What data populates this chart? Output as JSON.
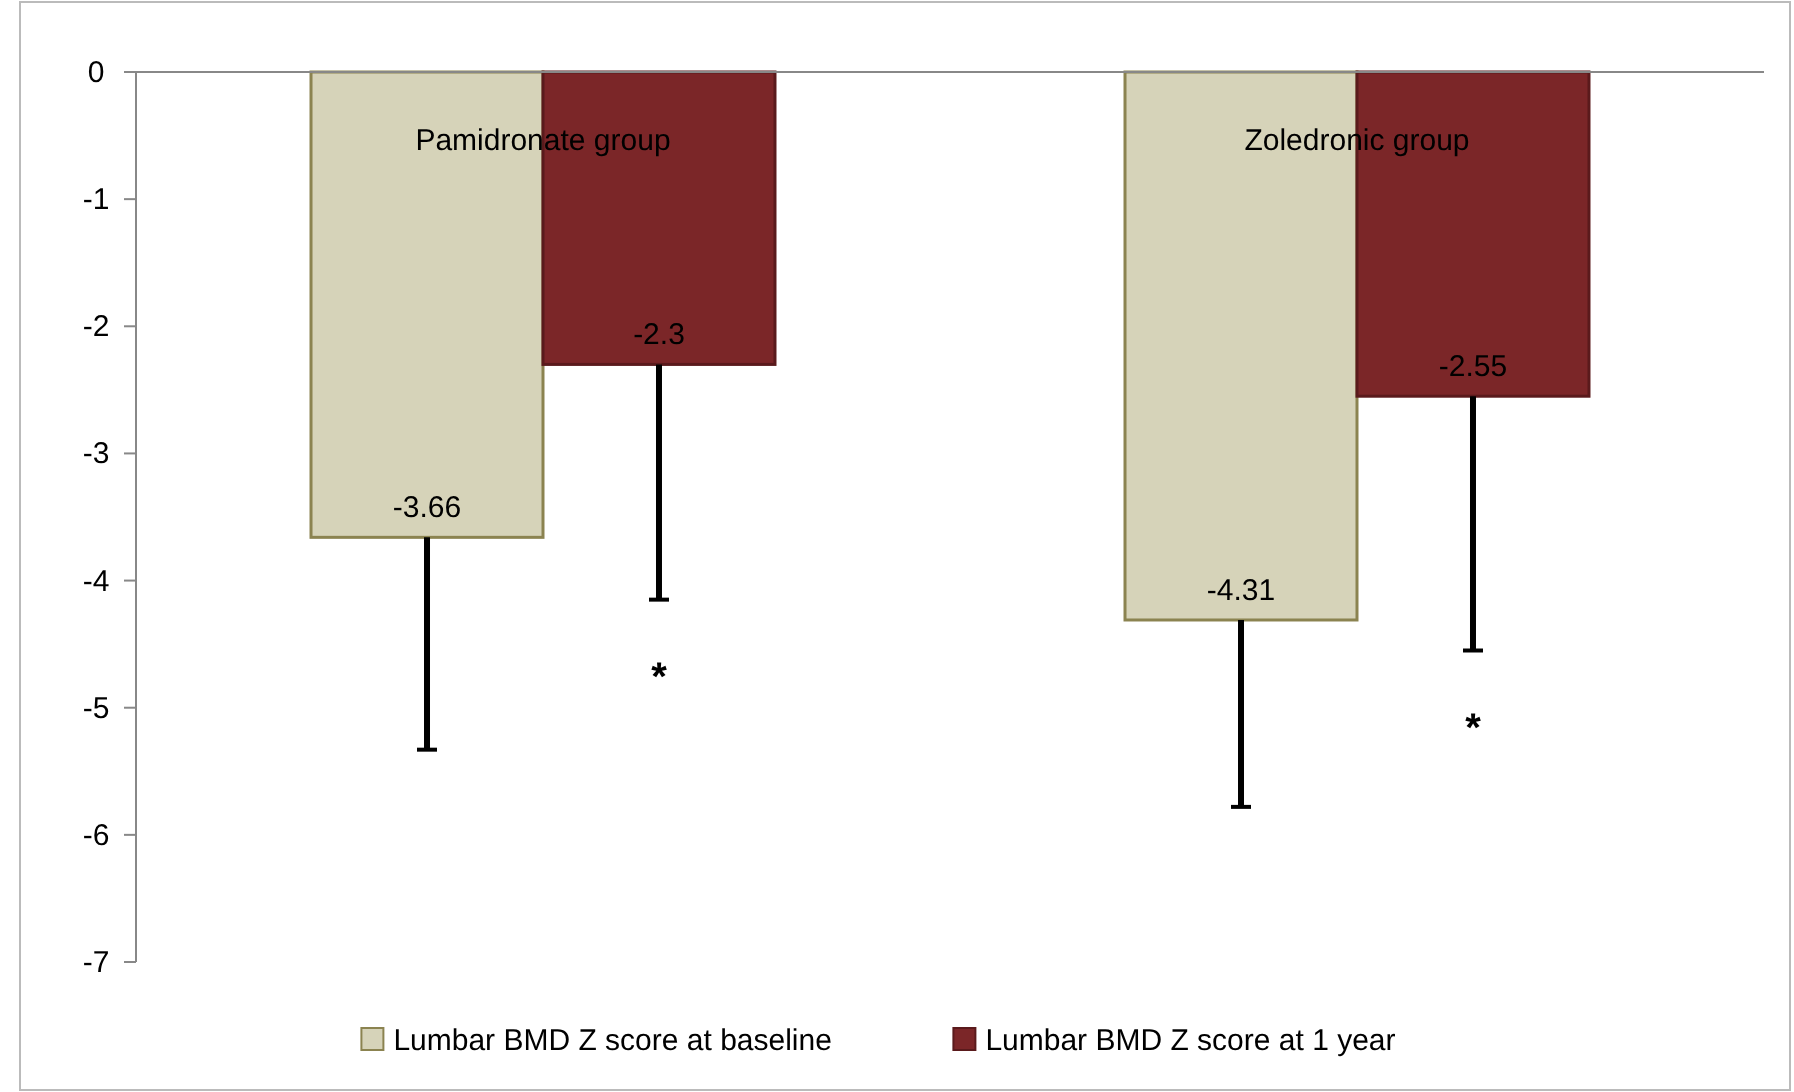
{
  "chart_data": {
    "type": "bar",
    "categories": [
      "Pamidronate group",
      "Zoledronic group"
    ],
    "series": [
      {
        "name": "Lumbar BMD Z score at baseline",
        "color": "#d6d3b9",
        "values": [
          -3.66,
          -4.31
        ],
        "errors": [
          [
            -5.33,
            -3.66
          ],
          [
            -5.78,
            -4.31
          ]
        ]
      },
      {
        "name": "Lumbar BMD Z score at 1 year",
        "color": "#7b2628",
        "values": [
          -2.3,
          -2.55
        ],
        "errors": [
          [
            -4.15,
            -2.3
          ],
          [
            -4.55,
            -2.55
          ]
        ]
      }
    ],
    "ylim": [
      -7,
      0
    ],
    "yticks": [
      0,
      -1,
      -2,
      -3,
      -4,
      -5,
      -6,
      -7
    ],
    "data_labels": true,
    "legend": "bottom",
    "annotations": [
      "*",
      "*"
    ]
  }
}
